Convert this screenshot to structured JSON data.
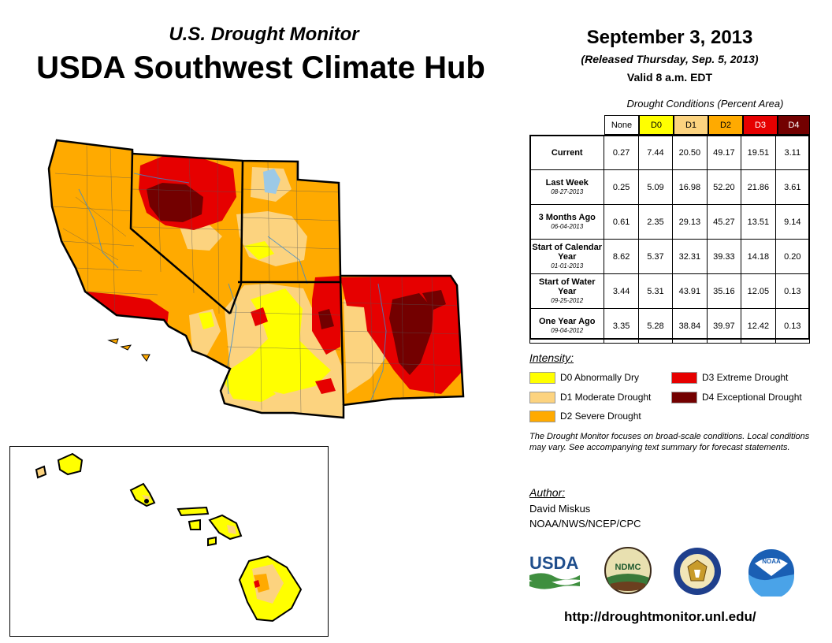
{
  "header": {
    "subtitle": "U.S. Drought Monitor",
    "title": "USDA Southwest Climate Hub",
    "date": "September 3, 2013",
    "released": "(Released Thursday, Sep. 5, 2013)",
    "valid": "Valid 8 a.m. EDT"
  },
  "table": {
    "caption": "Drought Conditions (Percent Area)",
    "columns": [
      "None",
      "D0",
      "D1",
      "D2",
      "D3",
      "D4"
    ],
    "rows": [
      {
        "label": "Current",
        "date": "",
        "values": [
          "0.27",
          "7.44",
          "20.50",
          "49.17",
          "19.51",
          "3.11"
        ]
      },
      {
        "label": "Last Week",
        "date": "08-27-2013",
        "values": [
          "0.25",
          "5.09",
          "16.98",
          "52.20",
          "21.86",
          "3.61"
        ]
      },
      {
        "label": "3 Months Ago",
        "date": "06-04-2013",
        "values": [
          "0.61",
          "2.35",
          "29.13",
          "45.27",
          "13.51",
          "9.14"
        ]
      },
      {
        "label": "Start of Calendar Year",
        "date": "01-01-2013",
        "values": [
          "8.62",
          "5.37",
          "32.31",
          "39.33",
          "14.18",
          "0.20"
        ]
      },
      {
        "label": "Start of Water Year",
        "date": "09-25-2012",
        "values": [
          "3.44",
          "5.31",
          "43.91",
          "35.16",
          "12.05",
          "0.13"
        ]
      },
      {
        "label": "One Year Ago",
        "date": "09-04-2012",
        "values": [
          "3.35",
          "5.28",
          "38.84",
          "39.97",
          "12.42",
          "0.13"
        ]
      }
    ]
  },
  "legend": {
    "title": "Intensity:",
    "items": [
      {
        "label": "D0 Abnormally Dry",
        "color": "#ffff00"
      },
      {
        "label": "D1 Moderate Drought",
        "color": "#fcd37f"
      },
      {
        "label": "D2 Severe Drought",
        "color": "#ffaa00"
      },
      {
        "label": "D3 Extreme Drought",
        "color": "#e60000"
      },
      {
        "label": "D4 Exceptional Drought",
        "color": "#730000"
      }
    ]
  },
  "note": "The Drought Monitor focuses on broad-scale conditions. Local conditions may vary. See accompanying text summary for forecast statements.",
  "author": {
    "title": "Author:",
    "name": "David Miskus",
    "org": "NOAA/NWS/NCEP/CPC"
  },
  "logos": {
    "usda": "USDA",
    "ndmc": "NDMC",
    "noaa": "NOAA"
  },
  "url": "http://droughtmonitor.unl.edu/",
  "colors": {
    "none": "#ffffff",
    "d0": "#ffff00",
    "d1": "#fcd37f",
    "d2": "#ffaa00",
    "d3": "#e60000",
    "d4": "#730000"
  }
}
